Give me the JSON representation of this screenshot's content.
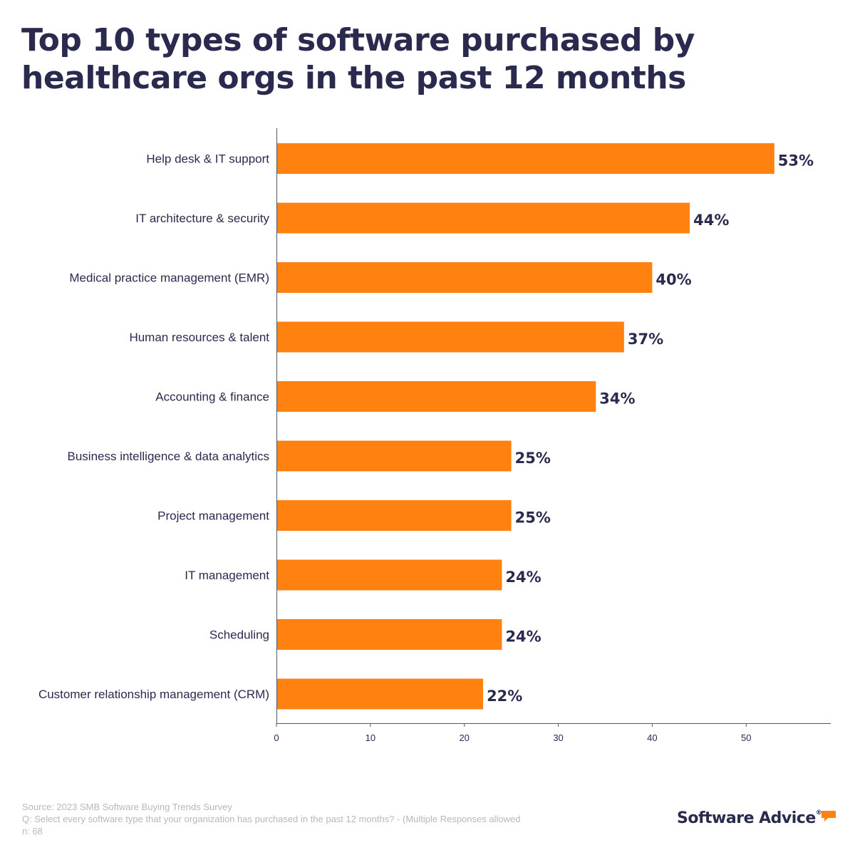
{
  "title_lines": [
    "Top 10 types of software purchased by",
    "healthcare orgs in the past 12 months"
  ],
  "chart_data": {
    "type": "bar",
    "orientation": "horizontal",
    "title": "Top 10 types of software purchased by healthcare orgs in the past 12 months",
    "categories": [
      "Help desk & IT support",
      "IT architecture & security",
      "Medical practice management (EMR)",
      "Human resources & talent",
      "Accounting & finance",
      "Business intelligence & data analytics",
      "Project management",
      "IT management",
      "Scheduling",
      "Customer relationship management (CRM)"
    ],
    "values": [
      53,
      44,
      40,
      37,
      34,
      25,
      25,
      24,
      24,
      22
    ],
    "data_labels": [
      "53%",
      "44%",
      "40%",
      "37%",
      "34%",
      "25%",
      "25%",
      "24%",
      "24%",
      "22%"
    ],
    "x_ticks": [
      0,
      10,
      20,
      30,
      40,
      50
    ],
    "xlim": [
      0,
      59
    ],
    "xlabel": "",
    "ylabel": "",
    "grid": false,
    "bar_color": "#ff8210"
  },
  "footer": {
    "source": "Source: 2023 SMB Software Buying Trends Survey",
    "question": "Q: Select every software type that your organization has purchased in the past 12 months? - (Multiple Responses allowed",
    "sample": "n: 68"
  },
  "brand": {
    "name": "Software Advice",
    "registered_mark": "®",
    "accent": "#ff8210"
  },
  "colors": {
    "title": "#2a2a4f",
    "label": "#2a2a4f",
    "axis": "#555566",
    "footer": "#b7b7c2"
  }
}
